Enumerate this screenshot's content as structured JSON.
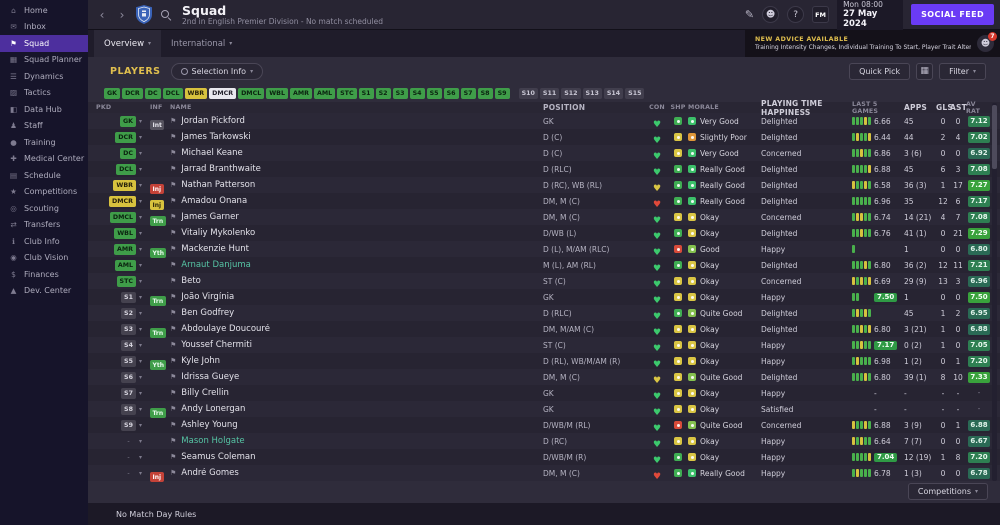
{
  "app": {
    "title": "Squad",
    "subtitle": "2nd in English Premier Division - No match scheduled",
    "date_day_time": "Mon 08:00",
    "date_full": "27 May 2024",
    "social_feed_label": "SOCIAL FEED"
  },
  "icons": {
    "back": "‹",
    "forward": "›",
    "chevron": "▾",
    "edit": "✎",
    "profile": "☻",
    "help": "?",
    "fm_logo": "FM",
    "flag": "⚑",
    "heart": "♥",
    "grid": "▦"
  },
  "colors": {
    "accent_purple": "#6a3bf5",
    "gold": "#e0bf4e",
    "chip_green": "#3f9d49",
    "chip_yellow": "#d8c23e",
    "rating_low": "#2a6a55",
    "rating_mid": "#2e7f52",
    "rating_high": "#39a23c",
    "sidebar_active": "#4d2f9e"
  },
  "sidebar": {
    "active_index": 2,
    "items": [
      {
        "label": "Home",
        "glyph": "⌂"
      },
      {
        "label": "Inbox",
        "glyph": "✉"
      },
      {
        "label": "Squad",
        "glyph": "⚑"
      },
      {
        "label": "Squad Planner",
        "glyph": "▦"
      },
      {
        "label": "Dynamics",
        "glyph": "☰"
      },
      {
        "label": "Tactics",
        "glyph": "▨"
      },
      {
        "label": "Data Hub",
        "glyph": "◧"
      },
      {
        "label": "Staff",
        "glyph": "♟"
      },
      {
        "label": "Training",
        "glyph": "●"
      },
      {
        "label": "Medical Center",
        "glyph": "✚"
      },
      {
        "label": "Schedule",
        "glyph": "▤"
      },
      {
        "label": "Competitions",
        "glyph": "★"
      },
      {
        "label": "Scouting",
        "glyph": "◎"
      },
      {
        "label": "Transfers",
        "glyph": "⇄"
      },
      {
        "label": "Club Info",
        "glyph": "ℹ"
      },
      {
        "label": "Club Vision",
        "glyph": "◉"
      },
      {
        "label": "Finances",
        "glyph": "$"
      },
      {
        "label": "Dev. Center",
        "glyph": "▲"
      }
    ]
  },
  "tabs": [
    {
      "label": "Overview",
      "active": true
    },
    {
      "label": "International",
      "active": false
    }
  ],
  "advice": {
    "header": "NEW ADVICE AVAILABLE",
    "text": "Training Intensity Changes, Individual Training To Start, Player Trait Alterations",
    "badge_count": "7"
  },
  "players_bar": {
    "section_label": "PLAYERS",
    "selection_info_label": "Selection Info",
    "quick_pick_label": "Quick Pick",
    "filter_label": "Filter"
  },
  "selection_chips": {
    "squad": [
      {
        "label": "GK",
        "state": "green"
      },
      {
        "label": "DCR",
        "state": "green"
      },
      {
        "label": "DC",
        "state": "green"
      },
      {
        "label": "DCL",
        "state": "green"
      },
      {
        "label": "WBR",
        "state": "yellow"
      },
      {
        "label": "DMCR",
        "state": "hover"
      },
      {
        "label": "DMCL",
        "state": "green"
      },
      {
        "label": "WBL",
        "state": "green"
      },
      {
        "label": "AMR",
        "state": "green"
      },
      {
        "label": "AML",
        "state": "green"
      },
      {
        "label": "STC",
        "state": "green"
      },
      {
        "label": "S1",
        "state": "green"
      },
      {
        "label": "S2",
        "state": "green"
      },
      {
        "label": "S3",
        "state": "green"
      },
      {
        "label": "S4",
        "state": "green"
      },
      {
        "label": "S5",
        "state": "green"
      },
      {
        "label": "S6",
        "state": "green"
      },
      {
        "label": "S7",
        "state": "green"
      },
      {
        "label": "S8",
        "state": "green"
      },
      {
        "label": "S9",
        "state": "green"
      }
    ],
    "reserves": [
      {
        "label": "S10",
        "state": "dark"
      },
      {
        "label": "S11",
        "state": "dark"
      },
      {
        "label": "S12",
        "state": "dark"
      },
      {
        "label": "S13",
        "state": "dark"
      },
      {
        "label": "S14",
        "state": "dark"
      },
      {
        "label": "S15",
        "state": "dark"
      }
    ]
  },
  "table": {
    "headers": [
      "PKD",
      "INF",
      "NAME",
      "POSITION",
      "CON",
      "SHP",
      "MORALE",
      "PLAYING TIME HAPPINESS",
      "LAST 5 GAMES",
      "APPS",
      "GLS",
      "AST",
      "AV RAT"
    ],
    "rows": [
      {
        "pkd": "GK",
        "pkd_state": "green",
        "inf": {
          "text": "Int",
          "color": "gray"
        },
        "name": "Jordan Pickford",
        "position": "GK",
        "con": "g",
        "shp": "g",
        "morale": {
          "text": "Very Good",
          "level": "green"
        },
        "pth": "Delighted",
        "form": [
          "g",
          "g",
          "g",
          "y",
          "g"
        ],
        "last5": "6.66",
        "apps": "45",
        "gls": "0",
        "ast": "0",
        "avrat": "7.12"
      },
      {
        "pkd": "DCR",
        "pkd_state": "green",
        "inf": null,
        "name": "James Tarkowski",
        "position": "D (C)",
        "con": "g",
        "shp": "y",
        "morale": {
          "text": "Slightly Poor",
          "level": "orange"
        },
        "pth": "Delighted",
        "form": [
          "g",
          "y",
          "g",
          "g",
          "y"
        ],
        "last5": "6.44",
        "apps": "44",
        "gls": "2",
        "ast": "4",
        "avrat": "7.02"
      },
      {
        "pkd": "DC",
        "pkd_state": "green",
        "inf": null,
        "name": "Michael Keane",
        "position": "D (C)",
        "con": "g",
        "shp": "y",
        "morale": {
          "text": "Very Good",
          "level": "green"
        },
        "pth": "Concerned",
        "form": [
          "g",
          "g",
          "y",
          "g",
          "g"
        ],
        "last5": "6.86",
        "apps": "3 (6)",
        "gls": "0",
        "ast": "0",
        "avrat": "6.92"
      },
      {
        "pkd": "DCL",
        "pkd_state": "green",
        "inf": null,
        "name": "Jarrad Branthwaite",
        "position": "D (RLC)",
        "con": "g",
        "shp": "g",
        "morale": {
          "text": "Really Good",
          "level": "green"
        },
        "pth": "Delighted",
        "form": [
          "g",
          "g",
          "g",
          "g",
          "y"
        ],
        "last5": "6.88",
        "apps": "45",
        "gls": "6",
        "ast": "3",
        "avrat": "7.08"
      },
      {
        "pkd": "WBR",
        "pkd_state": "yellow",
        "inf": {
          "text": "Inj",
          "color": "red"
        },
        "name": "Nathan Patterson",
        "position": "D (RC), WB (RL)",
        "con": "y",
        "shp": "g",
        "morale": {
          "text": "Really Good",
          "level": "green"
        },
        "pth": "Delighted",
        "form": [
          "y",
          "g",
          "g",
          "y",
          "g"
        ],
        "last5": "6.58",
        "apps": "36 (3)",
        "gls": "1",
        "ast": "17",
        "avrat": "7.27"
      },
      {
        "pkd": "DMCR",
        "pkd_state": "yellow",
        "inf": {
          "text": "Inj",
          "color": "yellow"
        },
        "name": "Amadou Onana",
        "position": "DM, M (C)",
        "con": "r",
        "shp": "g",
        "morale": {
          "text": "Really Good",
          "level": "green"
        },
        "pth": "Delighted",
        "form": [
          "g",
          "g",
          "g",
          "g",
          "g"
        ],
        "last5": "6.96",
        "apps": "35",
        "gls": "12",
        "ast": "6",
        "avrat": "7.17"
      },
      {
        "pkd": "DMCL",
        "pkd_state": "green",
        "inf": {
          "text": "Trn",
          "color": "green"
        },
        "name": "James Garner",
        "position": "DM, M (C)",
        "con": "g",
        "shp": "y",
        "morale": {
          "text": "Okay",
          "level": "yellow"
        },
        "pth": "Concerned",
        "form": [
          "g",
          "y",
          "y",
          "g",
          "g"
        ],
        "last5": "6.74",
        "apps": "14 (21)",
        "gls": "4",
        "ast": "7",
        "avrat": "7.08"
      },
      {
        "pkd": "WBL",
        "pkd_state": "green",
        "inf": null,
        "name": "Vitaliy Mykolenko",
        "position": "D/WB (L)",
        "con": "g",
        "shp": "g",
        "morale": {
          "text": "Okay",
          "level": "yellow"
        },
        "pth": "Delighted",
        "form": [
          "g",
          "g",
          "y",
          "g",
          "g"
        ],
        "last5": "6.76",
        "apps": "41 (1)",
        "gls": "0",
        "ast": "21",
        "avrat": "7.29"
      },
      {
        "pkd": "AMR",
        "pkd_state": "green",
        "inf": {
          "text": "Yth",
          "color": "green"
        },
        "name": "Mackenzie Hunt",
        "position": "D (L), M/AM (RLC)",
        "con": "g",
        "shp": "r",
        "morale": {
          "text": "Good",
          "level": "lgreen"
        },
        "pth": "Happy",
        "form": [
          "g"
        ],
        "last5": "",
        "apps": "1",
        "gls": "0",
        "ast": "0",
        "avrat": "6.80"
      },
      {
        "pkd": "AML",
        "pkd_state": "green",
        "inf": null,
        "name": "Arnaut Danjuma",
        "name_color": "teal",
        "position": "M (L), AM (RL)",
        "con": "g",
        "shp": "g",
        "morale": {
          "text": "Okay",
          "level": "yellow"
        },
        "pth": "Delighted",
        "form": [
          "g",
          "g",
          "g",
          "y",
          "g"
        ],
        "last5": "6.80",
        "apps": "36 (2)",
        "gls": "12",
        "ast": "11",
        "avrat": "7.21"
      },
      {
        "pkd": "STC",
        "pkd_state": "green",
        "inf": null,
        "name": "Beto",
        "position": "ST (C)",
        "con": "g",
        "shp": "y",
        "morale": {
          "text": "Okay",
          "level": "yellow"
        },
        "pth": "Concerned",
        "form": [
          "y",
          "g",
          "y",
          "g",
          "y"
        ],
        "last5": "6.69",
        "apps": "29 (9)",
        "gls": "13",
        "ast": "3",
        "avrat": "6.96"
      },
      {
        "pkd": "S1",
        "pkd_state": "sub",
        "inf": {
          "text": "Trn",
          "color": "green"
        },
        "name": "João Virgínia",
        "position": "GK",
        "con": "g",
        "shp": "y",
        "morale": {
          "text": "Okay",
          "level": "yellow"
        },
        "pth": "Happy",
        "form": [
          "g",
          "g"
        ],
        "last5": "7.50",
        "apps": "1",
        "gls": "0",
        "ast": "0",
        "avrat": "7.50"
      },
      {
        "pkd": "S2",
        "pkd_state": "sub",
        "inf": null,
        "name": "Ben Godfrey",
        "position": "D (RLC)",
        "con": "g",
        "shp": "g",
        "morale": {
          "text": "Quite Good",
          "level": "lgreen"
        },
        "pth": "Delighted",
        "form": [
          "g",
          "y",
          "g",
          "y",
          "g"
        ],
        "last5": "",
        "apps": "45",
        "gls": "1",
        "ast": "2",
        "avrat": "6.95"
      },
      {
        "pkd": "S3",
        "pkd_state": "sub",
        "inf": {
          "text": "Trn",
          "color": "green"
        },
        "name": "Abdoulaye Doucouré",
        "position": "DM, M/AM (C)",
        "con": "g",
        "shp": "y",
        "morale": {
          "text": "Okay",
          "level": "yellow"
        },
        "pth": "Delighted",
        "form": [
          "g",
          "g",
          "y",
          "g",
          "y"
        ],
        "last5": "6.80",
        "apps": "3 (21)",
        "gls": "1",
        "ast": "0",
        "avrat": "6.88"
      },
      {
        "pkd": "S4",
        "pkd_state": "sub",
        "inf": null,
        "name": "Youssef Chermiti",
        "position": "ST (C)",
        "con": "g",
        "shp": "y",
        "morale": {
          "text": "Okay",
          "level": "yellow"
        },
        "pth": "Happy",
        "form": [
          "g",
          "g",
          "y",
          "g",
          "g"
        ],
        "last5": "7.17",
        "apps": "0 (2)",
        "gls": "1",
        "ast": "0",
        "avrat": "7.05"
      },
      {
        "pkd": "S5",
        "pkd_state": "sub",
        "inf": {
          "text": "Yth",
          "color": "green"
        },
        "name": "Kyle John",
        "position": "D (RL), WB/M/AM (R)",
        "con": "g",
        "shp": "y",
        "morale": {
          "text": "Okay",
          "level": "yellow"
        },
        "pth": "Happy",
        "form": [
          "g",
          "y",
          "g",
          "g",
          "g"
        ],
        "last5": "6.98",
        "apps": "1 (2)",
        "gls": "0",
        "ast": "1",
        "avrat": "7.20"
      },
      {
        "pkd": "S6",
        "pkd_state": "sub",
        "inf": null,
        "name": "Idrissa Gueye",
        "position": "DM, M (C)",
        "con": "y",
        "shp": "y",
        "morale": {
          "text": "Quite Good",
          "level": "lgreen"
        },
        "pth": "Delighted",
        "form": [
          "g",
          "g",
          "g",
          "y",
          "g"
        ],
        "last5": "6.80",
        "apps": "39 (1)",
        "gls": "8",
        "ast": "10",
        "avrat": "7.33"
      },
      {
        "pkd": "S7",
        "pkd_state": "sub",
        "inf": null,
        "name": "Billy Crellin",
        "position": "GK",
        "con": "g",
        "shp": "y",
        "morale": {
          "text": "Okay",
          "level": "yellow"
        },
        "pth": "Happy",
        "form": [],
        "last5": "-",
        "apps": "-",
        "gls": "-",
        "ast": "-",
        "avrat": "-"
      },
      {
        "pkd": "S8",
        "pkd_state": "sub",
        "inf": {
          "text": "Trn",
          "color": "green"
        },
        "name": "Andy Lonergan",
        "position": "GK",
        "con": "g",
        "shp": "y",
        "morale": {
          "text": "Okay",
          "level": "yellow"
        },
        "pth": "Satisfied",
        "form": [],
        "last5": "-",
        "apps": "-",
        "gls": "-",
        "ast": "-",
        "avrat": "-"
      },
      {
        "pkd": "S9",
        "pkd_state": "sub",
        "inf": null,
        "name": "Ashley Young",
        "position": "D/WB/M (RL)",
        "con": "g",
        "shp": "r",
        "morale": {
          "text": "Quite Good",
          "level": "lgreen"
        },
        "pth": "Concerned",
        "form": [
          "y",
          "g",
          "g",
          "y",
          "g"
        ],
        "last5": "6.88",
        "apps": "3 (9)",
        "gls": "0",
        "ast": "1",
        "avrat": "6.88"
      },
      {
        "pkd": "-",
        "pkd_state": "none",
        "inf": null,
        "name": "Mason Holgate",
        "name_color": "teal",
        "position": "D (RC)",
        "con": "g",
        "shp": "y",
        "morale": {
          "text": "Okay",
          "level": "yellow"
        },
        "pth": "Happy",
        "form": [
          "y",
          "g",
          "y",
          "g",
          "g"
        ],
        "last5": "6.64",
        "apps": "7 (7)",
        "gls": "0",
        "ast": "0",
        "avrat": "6.67"
      },
      {
        "pkd": "-",
        "pkd_state": "none",
        "inf": null,
        "name": "Seamus Coleman",
        "position": "D/WB/M (R)",
        "con": "g",
        "shp": "g",
        "morale": {
          "text": "Okay",
          "level": "yellow"
        },
        "pth": "Happy",
        "form": [
          "g",
          "g",
          "g",
          "g",
          "y"
        ],
        "last5": "7.04",
        "apps": "12 (19)",
        "gls": "1",
        "ast": "8",
        "avrat": "7.20"
      },
      {
        "pkd": "-",
        "pkd_state": "none",
        "inf": {
          "text": "Inj",
          "color": "red"
        },
        "name": "André Gomes",
        "position": "DM, M (C)",
        "con": "r",
        "shp": "g",
        "morale": {
          "text": "Really Good",
          "level": "green"
        },
        "pth": "Happy",
        "form": [
          "g",
          "y",
          "g",
          "g",
          "g"
        ],
        "last5": "6.78",
        "apps": "1 (3)",
        "gls": "0",
        "ast": "0",
        "avrat": "6.78"
      }
    ]
  },
  "footer": {
    "no_match_day_rules": "No Match Day Rules",
    "competitions_label": "Competitions"
  }
}
